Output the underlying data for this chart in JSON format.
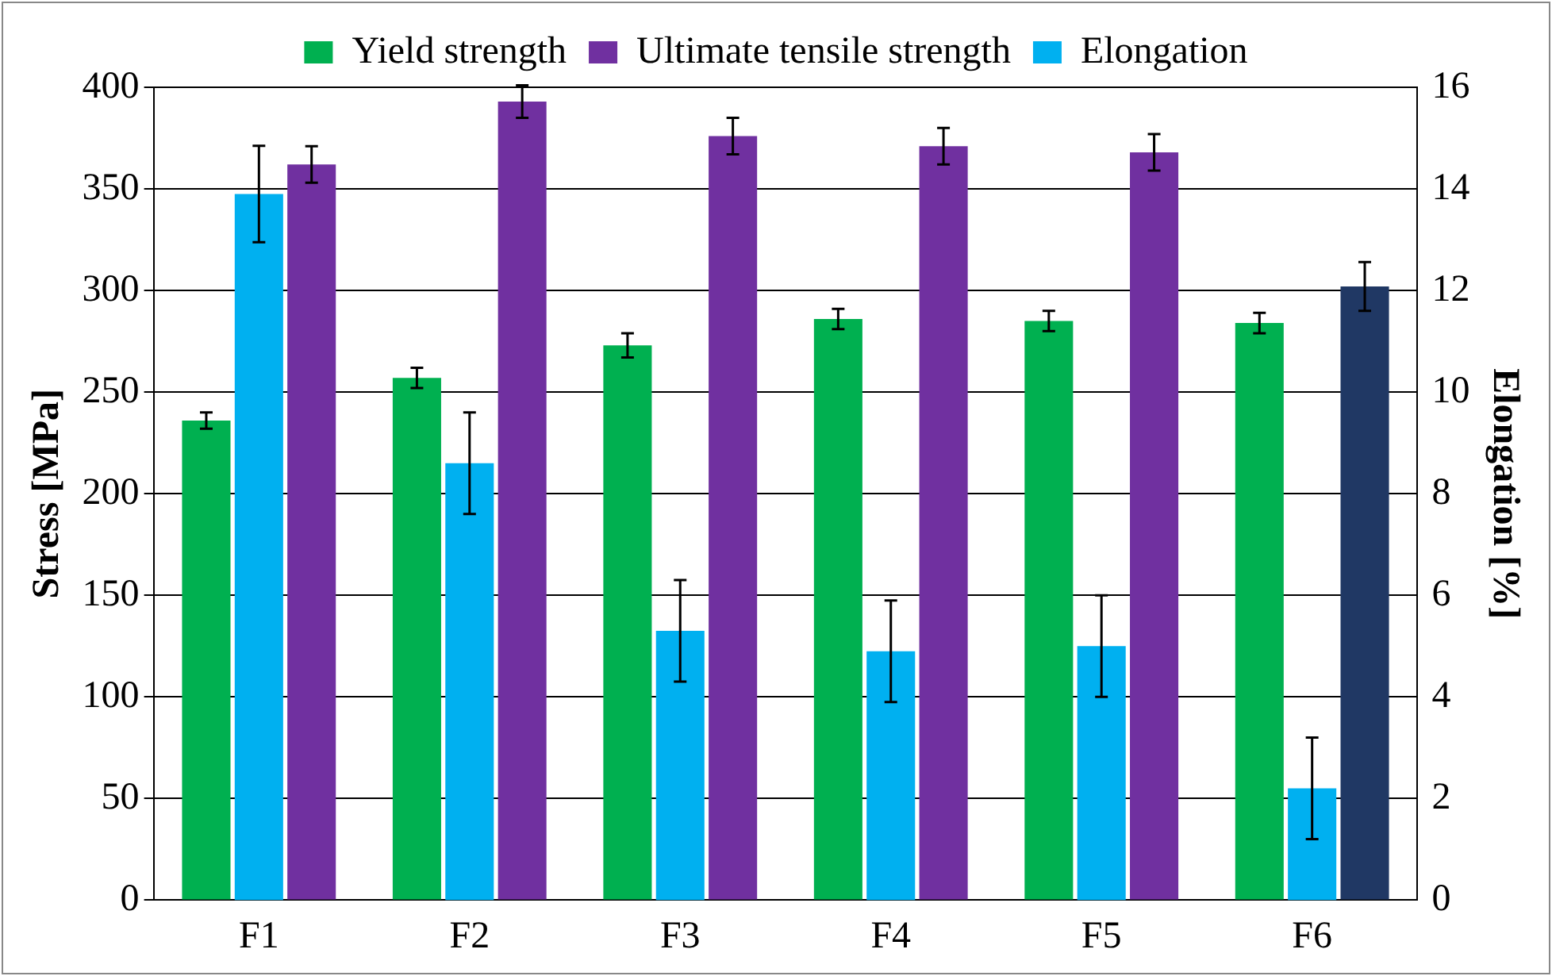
{
  "chart_data": {
    "type": "bar",
    "categories": [
      "F1",
      "F2",
      "F3",
      "F4",
      "F5",
      "F6"
    ],
    "series": [
      {
        "name": "Yield strength",
        "color": "#00b050",
        "values": [
          236,
          257,
          273,
          286,
          285,
          284
        ],
        "errors": [
          4,
          5,
          6,
          5,
          5,
          5
        ]
      },
      {
        "name": "Ultimate tensile strength",
        "color": "#7030a0",
        "colors": [
          "#7030a0",
          "#7030a0",
          "#7030a0",
          "#7030a0",
          "#7030a0",
          "#203864"
        ],
        "values": [
          362,
          393,
          376,
          371,
          368,
          302
        ],
        "errors": [
          9,
          8,
          9,
          9,
          9,
          12
        ]
      },
      {
        "name": "Elongation",
        "color": "#00b0f0",
        "axis": "y2",
        "values": [
          13.9,
          8.6,
          5.3,
          4.9,
          5.0,
          2.2
        ],
        "errors": [
          0.95,
          1.0,
          1.0,
          1.0,
          1.0,
          1.0
        ]
      }
    ],
    "ylabel": "Stress [MPa]",
    "y2label": "Elongation [%]",
    "ylim": [
      0,
      400
    ],
    "yticks": [
      0,
      50,
      100,
      150,
      200,
      250,
      300,
      350,
      400
    ],
    "y2lim": [
      0,
      16
    ],
    "y2ticks": [
      0,
      2,
      4,
      6,
      8,
      10,
      12,
      14,
      16
    ],
    "grid": "y",
    "legend": "top"
  }
}
